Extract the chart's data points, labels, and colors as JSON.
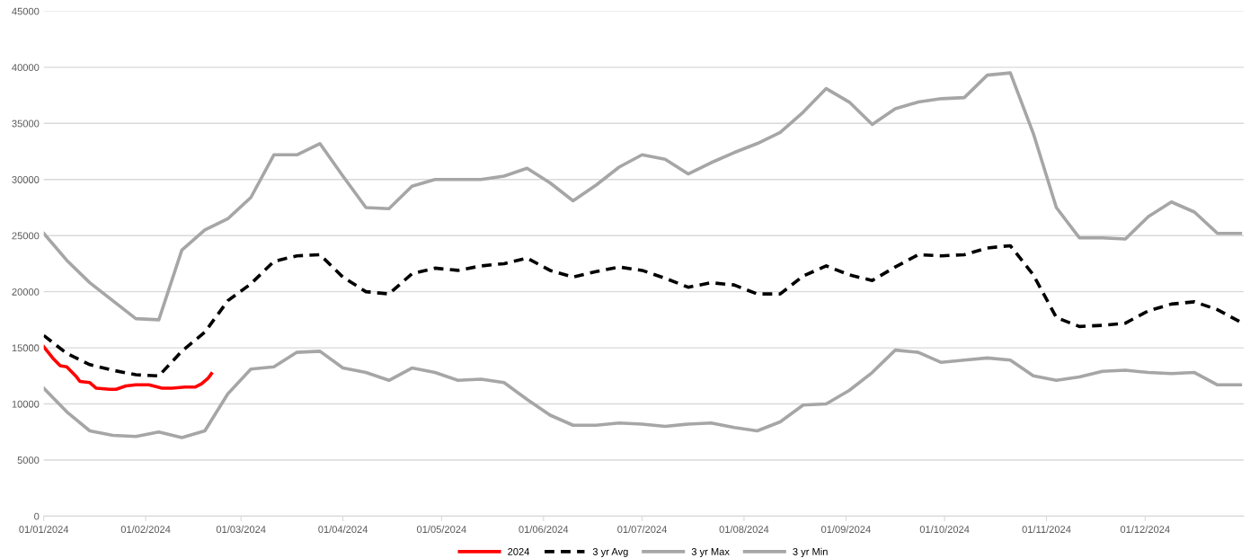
{
  "chart_data": {
    "type": "line",
    "legend": "bottom",
    "grid": "y",
    "marker": "none",
    "xlim": [
      "2024-01-01",
      "2024-12-31"
    ],
    "xticks": [
      {
        "value": "2024-01-01",
        "label": "01/01/2024"
      },
      {
        "value": "2024-02-01",
        "label": "01/02/2024"
      },
      {
        "value": "2024-03-01",
        "label": "01/03/2024"
      },
      {
        "value": "2024-04-01",
        "label": "01/04/2024"
      },
      {
        "value": "2024-05-01",
        "label": "01/05/2024"
      },
      {
        "value": "2024-06-01",
        "label": "01/06/2024"
      },
      {
        "value": "2024-07-01",
        "label": "01/07/2024"
      },
      {
        "value": "2024-08-01",
        "label": "01/08/2024"
      },
      {
        "value": "2024-09-01",
        "label": "01/09/2024"
      },
      {
        "value": "2024-10-01",
        "label": "01/10/2024"
      },
      {
        "value": "2024-11-01",
        "label": "01/11/2024"
      },
      {
        "value": "2024-12-01",
        "label": "01/12/2024"
      }
    ],
    "ylim": [
      0,
      45000
    ],
    "yticks": [
      0,
      5000,
      10000,
      15000,
      20000,
      25000,
      30000,
      35000,
      40000,
      45000
    ],
    "x": [
      "2024-01-01",
      "2024-01-08",
      "2024-01-15",
      "2024-01-22",
      "2024-01-29",
      "2024-02-05",
      "2024-02-12",
      "2024-02-19",
      "2024-02-26",
      "2024-03-04",
      "2024-03-11",
      "2024-03-18",
      "2024-03-25",
      "2024-04-01",
      "2024-04-08",
      "2024-04-15",
      "2024-04-22",
      "2024-04-29",
      "2024-05-06",
      "2024-05-13",
      "2024-05-20",
      "2024-05-27",
      "2024-06-03",
      "2024-06-10",
      "2024-06-17",
      "2024-06-24",
      "2024-07-01",
      "2024-07-08",
      "2024-07-15",
      "2024-07-22",
      "2024-07-29",
      "2024-08-05",
      "2024-08-12",
      "2024-08-19",
      "2024-08-26",
      "2024-09-02",
      "2024-09-09",
      "2024-09-16",
      "2024-09-23",
      "2024-09-30",
      "2024-10-07",
      "2024-10-14",
      "2024-10-21",
      "2024-10-28",
      "2024-11-04",
      "2024-11-11",
      "2024-11-18",
      "2024-11-25",
      "2024-12-02",
      "2024-12-09",
      "2024-12-16",
      "2024-12-23",
      "2024-12-30"
    ],
    "series": [
      {
        "name": "2024",
        "color": "#ff0000",
        "line_style": "solid",
        "x": [
          "2024-01-01",
          "2024-01-04",
          "2024-01-06",
          "2024-01-08",
          "2024-01-11",
          "2024-01-12",
          "2024-01-15",
          "2024-01-17",
          "2024-01-21",
          "2024-01-23",
          "2024-01-26",
          "2024-01-29",
          "2024-02-02",
          "2024-02-06",
          "2024-02-09",
          "2024-02-13",
          "2024-02-16",
          "2024-02-18",
          "2024-02-20",
          "2024-02-21"
        ],
        "values": [
          15100,
          14000,
          13400,
          13300,
          12400,
          12000,
          11900,
          11400,
          11300,
          11300,
          11600,
          11700,
          11700,
          11400,
          11400,
          11500,
          11500,
          11800,
          12300,
          12700
        ]
      },
      {
        "name": "3 yr Avg",
        "color": "#000000",
        "line_style": "dashed",
        "values": [
          16100,
          14500,
          13500,
          13000,
          12600,
          12500,
          14700,
          16400,
          19200,
          20700,
          22700,
          23200,
          23300,
          21300,
          20000,
          19800,
          21600,
          22100,
          21900,
          22300,
          22500,
          23000,
          21900,
          21300,
          21800,
          22200,
          21900,
          21200,
          20400,
          20800,
          20600,
          19800,
          19800,
          21400,
          22300,
          21500,
          21000,
          22200,
          23300,
          23200,
          23300,
          23900,
          24100,
          21500,
          17700,
          16900,
          17000,
          17200,
          18300,
          18900,
          19100,
          18400,
          17300
        ]
      },
      {
        "name": "3 yr Max",
        "color": "#a6a6a6",
        "line_style": "solid",
        "values": [
          25200,
          22800,
          20800,
          19200,
          17600,
          17500,
          23700,
          25500,
          26500,
          28400,
          32200,
          32200,
          33200,
          30300,
          27500,
          27400,
          29400,
          30000,
          30000,
          30000,
          30300,
          31000,
          29700,
          28100,
          29500,
          31100,
          32200,
          31800,
          30500,
          31500,
          32400,
          33200,
          34200,
          36000,
          38100,
          36900,
          34900,
          36300,
          36900,
          37200,
          37300,
          39300,
          39500,
          34100,
          27500,
          24800,
          24800,
          24700,
          26700,
          28000,
          27100,
          25200,
          25200
        ]
      },
      {
        "name": "3 yr Min",
        "color": "#a6a6a6",
        "line_style": "solid",
        "values": [
          11400,
          9300,
          7600,
          7200,
          7100,
          7500,
          7000,
          7600,
          10900,
          13100,
          13300,
          14600,
          14700,
          13200,
          12800,
          12100,
          13200,
          12800,
          12100,
          12200,
          11900,
          10400,
          9000,
          8100,
          8100,
          8300,
          8200,
          8000,
          8200,
          8300,
          7900,
          7600,
          8400,
          9900,
          10000,
          11200,
          12800,
          14800,
          14600,
          13700,
          13900,
          14100,
          13900,
          12500,
          12100,
          12400,
          12900,
          13000,
          12800,
          12700,
          12800,
          11700,
          11700
        ]
      }
    ]
  }
}
